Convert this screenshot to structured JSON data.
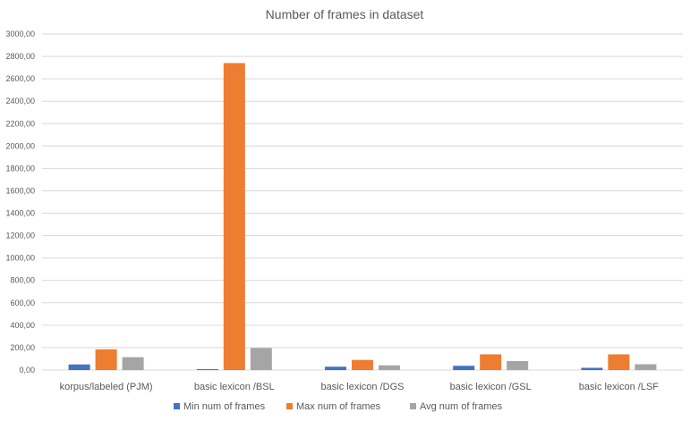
{
  "chart_data": {
    "type": "bar",
    "title": "Number of frames in dataset",
    "xlabel": "",
    "ylabel": "",
    "ylim": [
      0,
      3000
    ],
    "yticks": [
      "0,00",
      "200,00",
      "400,00",
      "600,00",
      "800,00",
      "1000,00",
      "1200,00",
      "1400,00",
      "1600,00",
      "1800,00",
      "2000,00",
      "2200,00",
      "2400,00",
      "2600,00",
      "2800,00",
      "3000,00"
    ],
    "grid": true,
    "legend_position": "bottom",
    "categories": [
      "korpus/labeled (PJM)",
      "basic lexicon /BSL",
      "basic lexicon /DGS",
      "basic lexicon /GSL",
      "basic lexicon /LSF"
    ],
    "series": [
      {
        "name": "Min num of frames",
        "color": "#4472c4",
        "values": [
          50,
          8,
          30,
          38,
          20
        ]
      },
      {
        "name": "Max num of frames",
        "color": "#ed7d31",
        "values": [
          185,
          2740,
          90,
          140,
          140
        ]
      },
      {
        "name": "Avg num of frames",
        "color": "#a5a5a5",
        "values": [
          115,
          197,
          42,
          80,
          52
        ]
      }
    ]
  }
}
